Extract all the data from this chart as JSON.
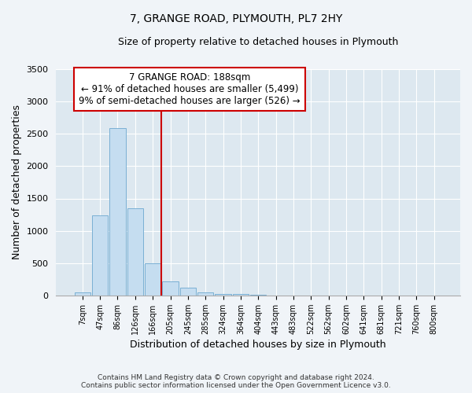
{
  "title": "7, GRANGE ROAD, PLYMOUTH, PL7 2HY",
  "subtitle": "Size of property relative to detached houses in Plymouth",
  "xlabel": "Distribution of detached houses by size in Plymouth",
  "ylabel": "Number of detached properties",
  "bar_labels": [
    "7sqm",
    "47sqm",
    "86sqm",
    "126sqm",
    "166sqm",
    "205sqm",
    "245sqm",
    "285sqm",
    "324sqm",
    "364sqm",
    "404sqm",
    "443sqm",
    "483sqm",
    "522sqm",
    "562sqm",
    "602sqm",
    "641sqm",
    "681sqm",
    "721sqm",
    "760sqm",
    "800sqm"
  ],
  "bar_values": [
    50,
    1240,
    2590,
    1350,
    500,
    220,
    115,
    45,
    25,
    20,
    5,
    2,
    2,
    0,
    0,
    0,
    0,
    0,
    0,
    0,
    0
  ],
  "bar_color": "#c5ddf0",
  "bar_edgecolor": "#7ab0d4",
  "vline_x": 5.0,
  "vline_color": "#cc0000",
  "ylim": [
    0,
    3500
  ],
  "yticks": [
    0,
    500,
    1000,
    1500,
    2000,
    2500,
    3000,
    3500
  ],
  "annotation_title": "7 GRANGE ROAD: 188sqm",
  "annotation_line1": "← 91% of detached houses are smaller (5,499)",
  "annotation_line2": "9% of semi-detached houses are larger (526) →",
  "annotation_box_facecolor": "white",
  "annotation_box_edgecolor": "#cc0000",
  "footer1": "Contains HM Land Registry data © Crown copyright and database right 2024.",
  "footer2": "Contains public sector information licensed under the Open Government Licence v3.0.",
  "fig_facecolor": "#f0f4f8",
  "plot_facecolor": "#dde8f0",
  "grid_color": "white",
  "spine_color": "#aaaaaa"
}
